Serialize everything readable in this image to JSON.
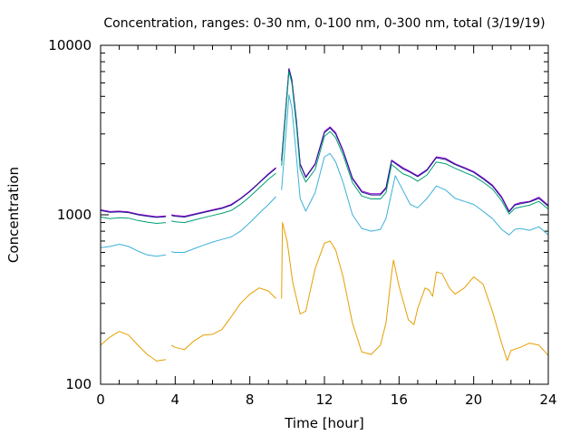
{
  "chart_data": {
    "type": "line",
    "title": "Concentration, ranges: 0-30 nm, 0-100 nm, 0-300 nm, total (3/19/19)",
    "xlabel": "Time [hour]",
    "ylabel": "Concentration",
    "xlim": [
      0,
      24
    ],
    "ylim": [
      100,
      10000
    ],
    "yscale": "log",
    "x_ticks": [
      "0",
      "4",
      "8",
      "12",
      "16",
      "20",
      "24"
    ],
    "y_ticks": [
      "100",
      "1000",
      "10000"
    ],
    "legend": "none",
    "gaps": [
      [
        3.6,
        3.8
      ],
      [
        9.4,
        9.7
      ],
      [
        15.5,
        15.7
      ]
    ],
    "series": [
      {
        "color": "#9400d3",
        "points": [
          [
            0,
            1070
          ],
          [
            0.5,
            1045
          ],
          [
            1,
            1050
          ],
          [
            1.5,
            1040
          ],
          [
            2,
            1010
          ],
          [
            2.5,
            990
          ],
          [
            3,
            975
          ],
          [
            3.5,
            985
          ],
          [
            3.8,
            1000
          ],
          [
            4,
            990
          ],
          [
            4.5,
            980
          ],
          [
            5,
            1010
          ],
          [
            5.5,
            1040
          ],
          [
            6,
            1070
          ],
          [
            6.5,
            1100
          ],
          [
            7,
            1150
          ],
          [
            7.5,
            1250
          ],
          [
            8,
            1380
          ],
          [
            8.5,
            1550
          ],
          [
            9,
            1750
          ],
          [
            9.4,
            1900
          ],
          [
            9.7,
            2100
          ],
          [
            10.1,
            7300
          ],
          [
            10.25,
            6300
          ],
          [
            10.5,
            3600
          ],
          [
            10.7,
            2000
          ],
          [
            11,
            1680
          ],
          [
            11.5,
            2000
          ],
          [
            12,
            3100
          ],
          [
            12.3,
            3300
          ],
          [
            12.6,
            3050
          ],
          [
            13,
            2400
          ],
          [
            13.5,
            1650
          ],
          [
            14,
            1380
          ],
          [
            14.5,
            1330
          ],
          [
            15,
            1330
          ],
          [
            15.3,
            1450
          ],
          [
            15.6,
            2100
          ],
          [
            16.2,
            1900
          ],
          [
            16.6,
            1800
          ],
          [
            17,
            1700
          ],
          [
            17.5,
            1850
          ],
          [
            18,
            2200
          ],
          [
            18.5,
            2150
          ],
          [
            19,
            2000
          ],
          [
            19.5,
            1900
          ],
          [
            20,
            1800
          ],
          [
            20.5,
            1650
          ],
          [
            21,
            1500
          ],
          [
            21.5,
            1280
          ],
          [
            21.9,
            1050
          ],
          [
            22.2,
            1150
          ],
          [
            22.5,
            1180
          ],
          [
            23,
            1200
          ],
          [
            23.5,
            1270
          ],
          [
            24,
            1140
          ]
        ]
      },
      {
        "color": "#1a1a8c",
        "points": [
          [
            0,
            1060
          ],
          [
            0.5,
            1035
          ],
          [
            1,
            1040
          ],
          [
            1.5,
            1030
          ],
          [
            2,
            1000
          ],
          [
            2.5,
            980
          ],
          [
            3,
            965
          ],
          [
            3.5,
            975
          ],
          [
            3.8,
            990
          ],
          [
            4,
            980
          ],
          [
            4.5,
            970
          ],
          [
            5,
            1000
          ],
          [
            5.5,
            1030
          ],
          [
            6,
            1060
          ],
          [
            6.5,
            1090
          ],
          [
            7,
            1140
          ],
          [
            7.5,
            1240
          ],
          [
            8,
            1370
          ],
          [
            8.5,
            1540
          ],
          [
            9,
            1730
          ],
          [
            9.4,
            1880
          ],
          [
            9.7,
            2080
          ],
          [
            10.1,
            7250
          ],
          [
            10.25,
            6250
          ],
          [
            10.5,
            3550
          ],
          [
            10.7,
            1980
          ],
          [
            11,
            1660
          ],
          [
            11.5,
            1980
          ],
          [
            12,
            3050
          ],
          [
            12.3,
            3250
          ],
          [
            12.6,
            3000
          ],
          [
            13,
            2370
          ],
          [
            13.5,
            1630
          ],
          [
            14,
            1360
          ],
          [
            14.5,
            1310
          ],
          [
            15,
            1310
          ],
          [
            15.3,
            1430
          ],
          [
            15.6,
            2080
          ],
          [
            16.2,
            1870
          ],
          [
            16.6,
            1780
          ],
          [
            17,
            1680
          ],
          [
            17.5,
            1830
          ],
          [
            18,
            2170
          ],
          [
            18.5,
            2120
          ],
          [
            19,
            1980
          ],
          [
            19.5,
            1880
          ],
          [
            20,
            1780
          ],
          [
            20.5,
            1630
          ],
          [
            21,
            1480
          ],
          [
            21.5,
            1260
          ],
          [
            21.9,
            1040
          ],
          [
            22.2,
            1140
          ],
          [
            22.5,
            1160
          ],
          [
            23,
            1190
          ],
          [
            23.5,
            1250
          ],
          [
            24,
            1120
          ]
        ]
      },
      {
        "color": "#009e73",
        "points": [
          [
            0,
            970
          ],
          [
            0.5,
            950
          ],
          [
            1,
            960
          ],
          [
            1.5,
            955
          ],
          [
            2,
            925
          ],
          [
            2.5,
            905
          ],
          [
            3,
            890
          ],
          [
            3.5,
            900
          ],
          [
            3.8,
            920
          ],
          [
            4,
            910
          ],
          [
            4.5,
            900
          ],
          [
            5,
            930
          ],
          [
            5.5,
            960
          ],
          [
            6,
            990
          ],
          [
            6.5,
            1020
          ],
          [
            7,
            1060
          ],
          [
            7.5,
            1150
          ],
          [
            8,
            1280
          ],
          [
            8.5,
            1440
          ],
          [
            9,
            1620
          ],
          [
            9.4,
            1760
          ],
          [
            9.7,
            1950
          ],
          [
            10.1,
            7000
          ],
          [
            10.25,
            6000
          ],
          [
            10.5,
            3350
          ],
          [
            10.7,
            1850
          ],
          [
            11,
            1560
          ],
          [
            11.5,
            1850
          ],
          [
            12,
            2900
          ],
          [
            12.3,
            3100
          ],
          [
            12.6,
            2850
          ],
          [
            13,
            2250
          ],
          [
            13.5,
            1550
          ],
          [
            14,
            1290
          ],
          [
            14.5,
            1240
          ],
          [
            15,
            1240
          ],
          [
            15.3,
            1350
          ],
          [
            15.6,
            1980
          ],
          [
            16.2,
            1750
          ],
          [
            16.6,
            1680
          ],
          [
            17,
            1580
          ],
          [
            17.5,
            1720
          ],
          [
            18,
            2050
          ],
          [
            18.5,
            2000
          ],
          [
            19,
            1880
          ],
          [
            19.5,
            1780
          ],
          [
            20,
            1690
          ],
          [
            20.5,
            1560
          ],
          [
            21,
            1420
          ],
          [
            21.5,
            1210
          ],
          [
            21.9,
            1010
          ],
          [
            22.2,
            1090
          ],
          [
            22.5,
            1110
          ],
          [
            23,
            1140
          ],
          [
            23.5,
            1200
          ],
          [
            24,
            1080
          ]
        ]
      },
      {
        "color": "#3cb0d8",
        "points": [
          [
            0,
            640
          ],
          [
            0.5,
            650
          ],
          [
            1,
            670
          ],
          [
            1.5,
            650
          ],
          [
            2,
            610
          ],
          [
            2.5,
            580
          ],
          [
            3,
            570
          ],
          [
            3.5,
            580
          ],
          [
            3.8,
            605
          ],
          [
            4,
            600
          ],
          [
            4.5,
            600
          ],
          [
            5,
            630
          ],
          [
            5.5,
            660
          ],
          [
            6,
            690
          ],
          [
            6.5,
            715
          ],
          [
            7,
            740
          ],
          [
            7.5,
            800
          ],
          [
            8,
            900
          ],
          [
            8.5,
            1020
          ],
          [
            9,
            1150
          ],
          [
            9.4,
            1280
          ],
          [
            9.7,
            1400
          ],
          [
            10.1,
            5100
          ],
          [
            10.25,
            4300
          ],
          [
            10.5,
            2200
          ],
          [
            10.7,
            1250
          ],
          [
            11,
            1050
          ],
          [
            11.5,
            1350
          ],
          [
            12,
            2200
          ],
          [
            12.3,
            2300
          ],
          [
            12.6,
            2050
          ],
          [
            13,
            1550
          ],
          [
            13.5,
            1000
          ],
          [
            14,
            830
          ],
          [
            14.5,
            800
          ],
          [
            15,
            820
          ],
          [
            15.3,
            950
          ],
          [
            15.6,
            1350
          ],
          [
            15.8,
            1700
          ],
          [
            16.2,
            1400
          ],
          [
            16.6,
            1150
          ],
          [
            17,
            1100
          ],
          [
            17.5,
            1250
          ],
          [
            18,
            1480
          ],
          [
            18.5,
            1400
          ],
          [
            19,
            1250
          ],
          [
            19.5,
            1200
          ],
          [
            20,
            1150
          ],
          [
            20.5,
            1050
          ],
          [
            21,
            950
          ],
          [
            21.5,
            820
          ],
          [
            21.9,
            760
          ],
          [
            22.2,
            820
          ],
          [
            22.5,
            830
          ],
          [
            23,
            810
          ],
          [
            23.5,
            850
          ],
          [
            24,
            760
          ]
        ]
      },
      {
        "color": "#e69f00",
        "points": [
          [
            0,
            170
          ],
          [
            0.5,
            190
          ],
          [
            1,
            205
          ],
          [
            1.5,
            195
          ],
          [
            2,
            170
          ],
          [
            2.5,
            150
          ],
          [
            3,
            137
          ],
          [
            3.5,
            140
          ],
          [
            3.8,
            170
          ],
          [
            4,
            165
          ],
          [
            4.5,
            160
          ],
          [
            5,
            180
          ],
          [
            5.5,
            195
          ],
          [
            6,
            197
          ],
          [
            6.5,
            210
          ],
          [
            7,
            250
          ],
          [
            7.5,
            300
          ],
          [
            8,
            340
          ],
          [
            8.5,
            370
          ],
          [
            9,
            355
          ],
          [
            9.4,
            320
          ],
          [
            9.7,
            320
          ],
          [
            9.75,
            900
          ],
          [
            10,
            700
          ],
          [
            10.3,
            400
          ],
          [
            10.7,
            260
          ],
          [
            11,
            270
          ],
          [
            11.5,
            480
          ],
          [
            12,
            680
          ],
          [
            12.3,
            700
          ],
          [
            12.6,
            620
          ],
          [
            13,
            430
          ],
          [
            13.5,
            230
          ],
          [
            14,
            155
          ],
          [
            14.5,
            150
          ],
          [
            15,
            170
          ],
          [
            15.3,
            230
          ],
          [
            15.6,
            450
          ],
          [
            15.7,
            540
          ],
          [
            16,
            380
          ],
          [
            16.5,
            240
          ],
          [
            16.8,
            225
          ],
          [
            17,
            280
          ],
          [
            17.4,
            370
          ],
          [
            17.6,
            360
          ],
          [
            17.8,
            330
          ],
          [
            18,
            460
          ],
          [
            18.3,
            450
          ],
          [
            18.7,
            370
          ],
          [
            19,
            340
          ],
          [
            19.5,
            370
          ],
          [
            20,
            430
          ],
          [
            20.5,
            390
          ],
          [
            21,
            270
          ],
          [
            21.5,
            175
          ],
          [
            21.8,
            138
          ],
          [
            22,
            158
          ],
          [
            22.5,
            165
          ],
          [
            23,
            175
          ],
          [
            23.5,
            170
          ],
          [
            24,
            148
          ]
        ]
      }
    ]
  }
}
